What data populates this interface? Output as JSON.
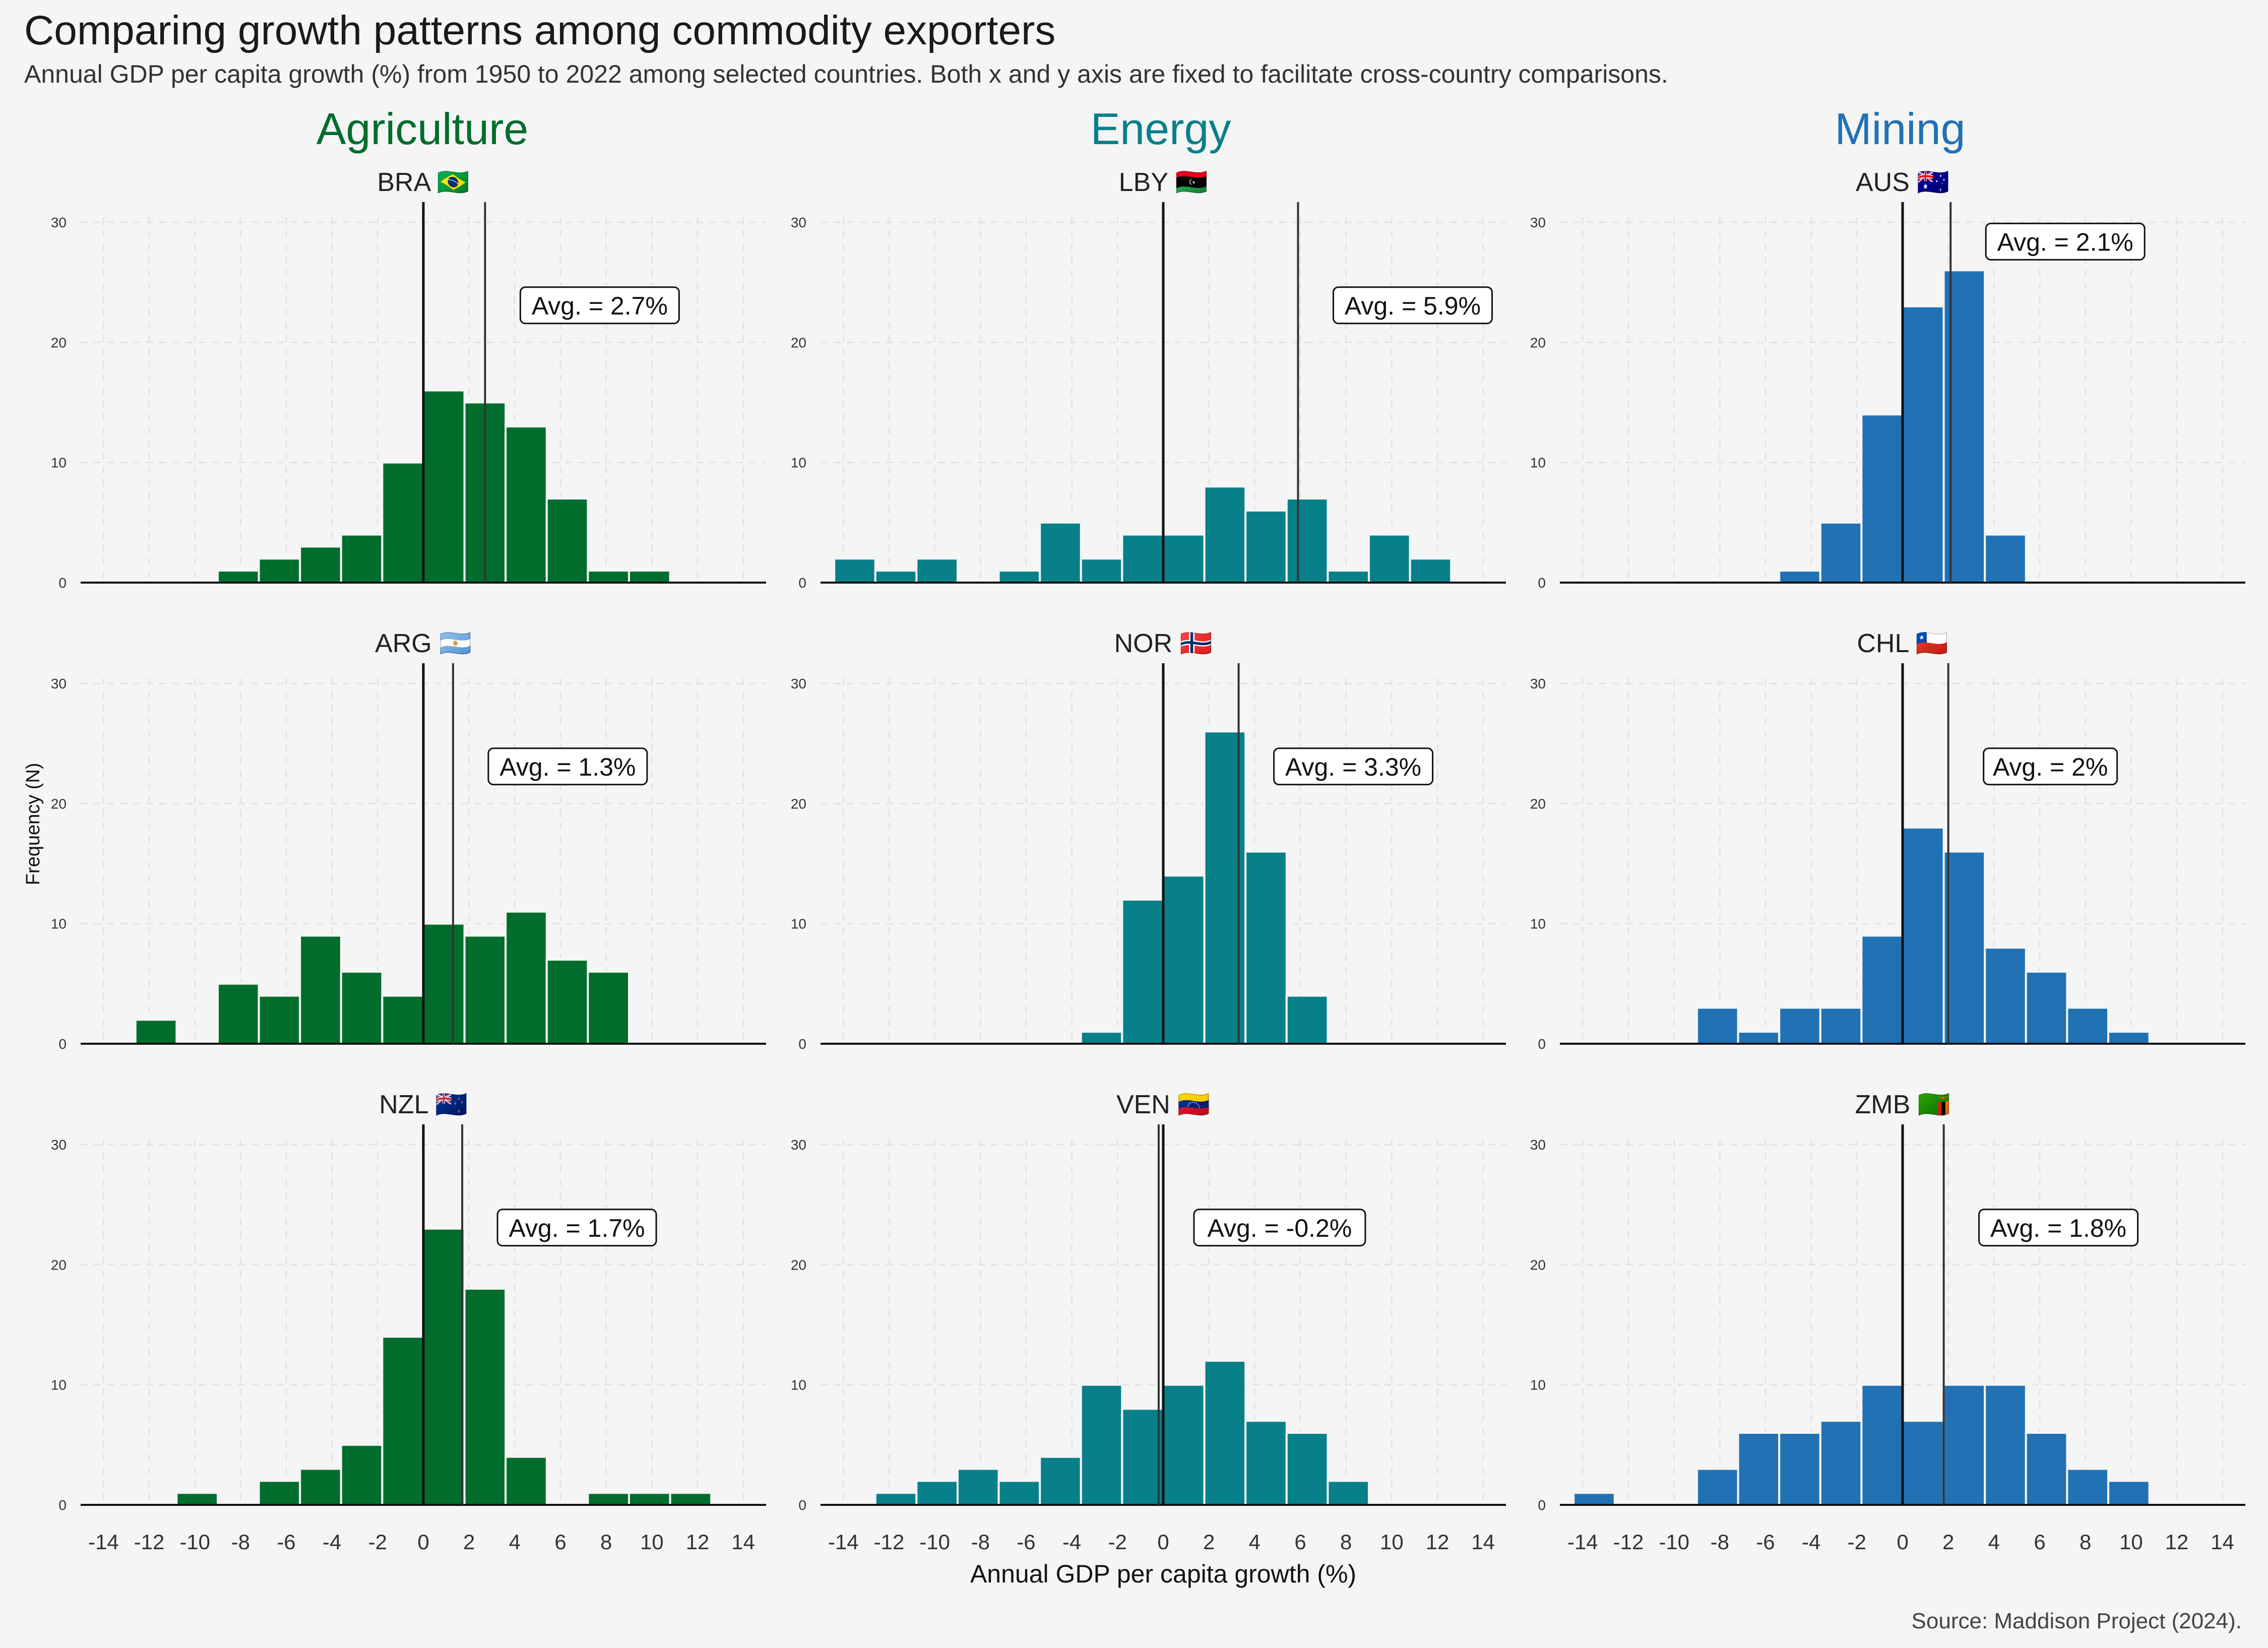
{
  "title": "Comparing growth patterns among commodity exporters",
  "subtitle": "Annual GDP per capita growth (%) from 1950 to 2022 among selected countries. Both x and y axis are fixed to facilitate cross-country comparisons.",
  "source": "Source: Maddison Project (2024).",
  "categories": [
    {
      "name": "Agriculture",
      "color": "#006d2c"
    },
    {
      "name": "Energy",
      "color": "#08808a"
    },
    {
      "name": "Mining",
      "color": "#2171b5"
    }
  ],
  "chart_data": {
    "type": "bar",
    "xlabel": "Annual GDP per capita growth (%)",
    "ylabel": "Frequency (N)",
    "xlim": [
      -15,
      15
    ],
    "ylim": [
      0,
      30
    ],
    "x_ticks": [
      -14,
      -12,
      -10,
      -8,
      -6,
      -4,
      -2,
      0,
      2,
      4,
      6,
      8,
      10,
      12,
      14
    ],
    "y_ticks": [
      0,
      10,
      20,
      30
    ],
    "bin_width": 1.8,
    "bin_centers": [
      -13.5,
      -11.7,
      -9.9,
      -8.1,
      -6.3,
      -4.5,
      -2.7,
      -0.9,
      0.9,
      2.7,
      4.5,
      6.3,
      8.1,
      9.9,
      11.7
    ],
    "panels": [
      {
        "country": "BRA",
        "flag": "🇧🇷",
        "category": "Agriculture",
        "avg": 2.7,
        "avg_label": "Avg. = 2.7%",
        "values": [
          0,
          0,
          0,
          1,
          2,
          3,
          4,
          10,
          16,
          15,
          13,
          7,
          1,
          1,
          0
        ]
      },
      {
        "country": "LBY",
        "flag": "🇱🇾",
        "category": "Energy",
        "avg": 5.9,
        "avg_label": "Avg. = 5.9%",
        "values": [
          2,
          1,
          2,
          0,
          1,
          5,
          2,
          4,
          4,
          8,
          6,
          7,
          1,
          4,
          2
        ]
      },
      {
        "country": "AUS",
        "flag": "🇦🇺",
        "category": "Mining",
        "avg": 2.1,
        "avg_label": "Avg. = 2.1%",
        "values": [
          0,
          0,
          0,
          0,
          0,
          1,
          5,
          14,
          23,
          26,
          4,
          0,
          0,
          0,
          0
        ]
      },
      {
        "country": "ARG",
        "flag": "🇦🇷",
        "category": "Agriculture",
        "avg": 1.3,
        "avg_label": "Avg. = 1.3%",
        "values": [
          0,
          2,
          0,
          5,
          4,
          9,
          6,
          4,
          10,
          9,
          11,
          7,
          6,
          0,
          0
        ]
      },
      {
        "country": "NOR",
        "flag": "🇳🇴",
        "category": "Energy",
        "avg": 3.3,
        "avg_label": "Avg. = 3.3%",
        "values": [
          0,
          0,
          0,
          0,
          0,
          0,
          1,
          12,
          14,
          26,
          16,
          4,
          0,
          0,
          0
        ]
      },
      {
        "country": "CHL",
        "flag": "🇨🇱",
        "category": "Mining",
        "avg": 2.0,
        "avg_label": "Avg. = 2%",
        "values": [
          0,
          0,
          0,
          3,
          1,
          3,
          3,
          9,
          18,
          16,
          8,
          6,
          3,
          1,
          0
        ]
      },
      {
        "country": "NZL",
        "flag": "🇳🇿",
        "category": "Agriculture",
        "avg": 1.7,
        "avg_label": "Avg. = 1.7%",
        "values": [
          0,
          0,
          1,
          0,
          2,
          3,
          5,
          14,
          23,
          18,
          4,
          0,
          1,
          1,
          1
        ]
      },
      {
        "country": "VEN",
        "flag": "🇻🇪",
        "category": "Energy",
        "avg": -0.2,
        "avg_label": "Avg. = -0.2%",
        "values": [
          0,
          1,
          2,
          3,
          2,
          4,
          10,
          8,
          10,
          12,
          7,
          6,
          2,
          0,
          0
        ]
      },
      {
        "country": "ZMB",
        "flag": "🇿🇲",
        "category": "Mining",
        "avg": 1.8,
        "avg_label": "Avg. = 1.8%",
        "values": [
          1,
          0,
          0,
          3,
          6,
          6,
          7,
          10,
          7,
          10,
          10,
          6,
          3,
          2,
          0
        ]
      }
    ]
  }
}
